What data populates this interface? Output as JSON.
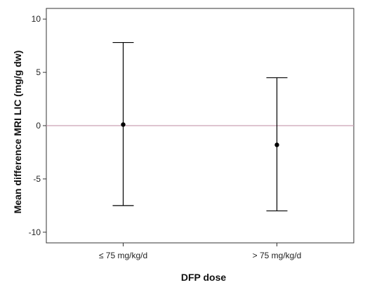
{
  "chart_data": {
    "type": "scatter",
    "title": "",
    "xlabel": "DFP dose",
    "ylabel": "Mean difference MRI LIC (mg/g dw)",
    "categories": [
      "≤ 75 mg/kg/d",
      "> 75 mg/kg/d"
    ],
    "series": [
      {
        "mean": [
          0.1,
          -1.8
        ],
        "lower": [
          -7.5,
          -8.0
        ],
        "upper": [
          7.8,
          4.5
        ]
      }
    ],
    "ylim": [
      -11,
      11
    ],
    "yticks": [
      -10,
      -5,
      0,
      5,
      10
    ],
    "reference_line": {
      "y": 0,
      "color": "#c9a0b4"
    },
    "grid": false,
    "colors": {
      "marks": "#000000",
      "axis": "#333333"
    }
  }
}
